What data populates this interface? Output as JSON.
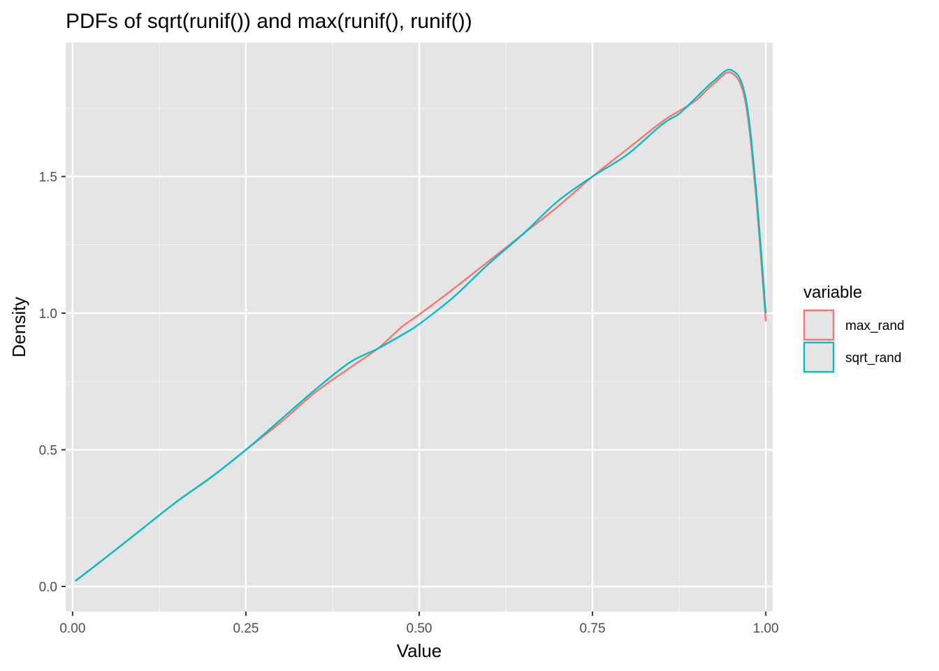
{
  "chart_data": {
    "type": "line",
    "title": "PDFs of sqrt(runif()) and max(runif(), runif())",
    "xlabel": "Value",
    "ylabel": "Density",
    "xlim": [
      -0.01,
      1.01
    ],
    "ylim": [
      -0.092,
      1.99
    ],
    "x_ticks": [
      0.0,
      0.25,
      0.5,
      0.75,
      1.0
    ],
    "x_tick_labels": [
      "0.00",
      "0.25",
      "0.50",
      "0.75",
      "1.00"
    ],
    "y_ticks": [
      0.0,
      0.5,
      1.0,
      1.5
    ],
    "y_tick_labels": [
      "0.0",
      "0.5",
      "1.0",
      "1.5"
    ],
    "grid": true,
    "panel_background": "#e5e5e5",
    "legend": {
      "title": "variable",
      "position": "right",
      "entries": [
        "max_rand",
        "sqrt_rand"
      ]
    },
    "series": [
      {
        "name": "max_rand",
        "color": "#f8766d",
        "x": [
          0.004,
          0.05,
          0.1,
          0.15,
          0.2,
          0.25,
          0.3,
          0.35,
          0.4,
          0.44,
          0.475,
          0.5,
          0.55,
          0.6,
          0.65,
          0.7,
          0.75,
          0.8,
          0.85,
          0.875,
          0.9,
          0.925,
          0.95,
          0.97,
          0.985,
          1.0
        ],
        "y": [
          0.02,
          0.11,
          0.21,
          0.31,
          0.4,
          0.5,
          0.6,
          0.71,
          0.8,
          0.87,
          0.95,
          0.995,
          1.09,
          1.19,
          1.29,
          1.39,
          1.5,
          1.6,
          1.7,
          1.74,
          1.78,
          1.84,
          1.88,
          1.78,
          1.45,
          0.97
        ]
      },
      {
        "name": "sqrt_rand",
        "color": "#00bfc4",
        "x": [
          0.004,
          0.05,
          0.1,
          0.15,
          0.2,
          0.25,
          0.3,
          0.35,
          0.4,
          0.44,
          0.475,
          0.5,
          0.55,
          0.6,
          0.65,
          0.7,
          0.75,
          0.8,
          0.85,
          0.875,
          0.9,
          0.925,
          0.95,
          0.97,
          0.985,
          1.0
        ],
        "y": [
          0.02,
          0.11,
          0.21,
          0.31,
          0.4,
          0.5,
          0.61,
          0.72,
          0.82,
          0.87,
          0.92,
          0.96,
          1.06,
          1.18,
          1.29,
          1.41,
          1.5,
          1.58,
          1.69,
          1.73,
          1.79,
          1.85,
          1.89,
          1.8,
          1.48,
          1.0
        ]
      }
    ]
  }
}
